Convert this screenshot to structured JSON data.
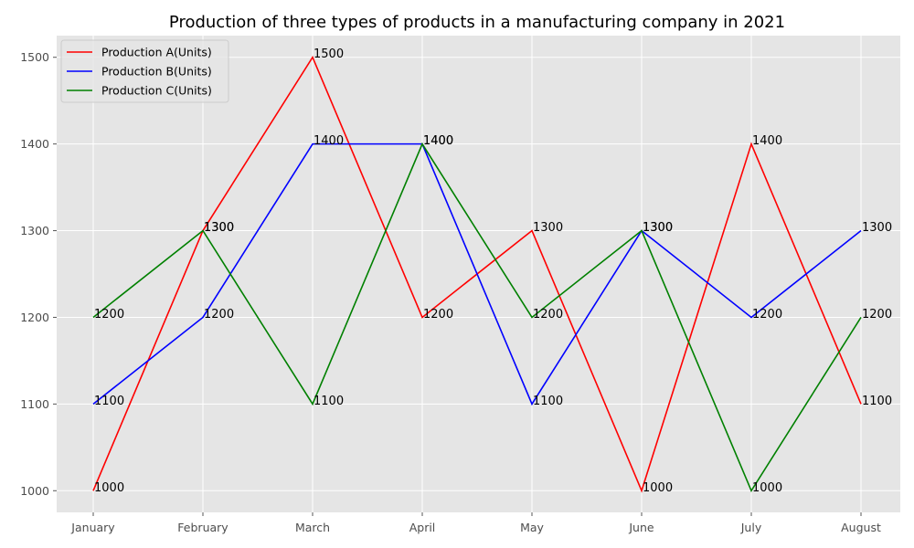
{
  "chart_data": {
    "type": "line",
    "title": "Production of three types of products in a manufacturing company in 2021",
    "xlabel": "",
    "ylabel": "",
    "categories": [
      "January",
      "February",
      "March",
      "April",
      "May",
      "June",
      "July",
      "August"
    ],
    "ylim": [
      975,
      1525
    ],
    "yticks": [
      1000,
      1100,
      1200,
      1300,
      1400,
      1500
    ],
    "grid": true,
    "legend_position": "top-left",
    "series": [
      {
        "name": "Production A(Units)",
        "color": "#ff0000",
        "values": [
          1000,
          1300,
          1500,
          1200,
          1300,
          1000,
          1400,
          1100
        ]
      },
      {
        "name": "Production B(Units)",
        "color": "#0000ff",
        "values": [
          1100,
          1200,
          1400,
          1400,
          1100,
          1300,
          1200,
          1300
        ]
      },
      {
        "name": "Production C(Units)",
        "color": "#008000",
        "values": [
          1200,
          1300,
          1100,
          1400,
          1200,
          1300,
          1000,
          1200
        ]
      }
    ]
  }
}
